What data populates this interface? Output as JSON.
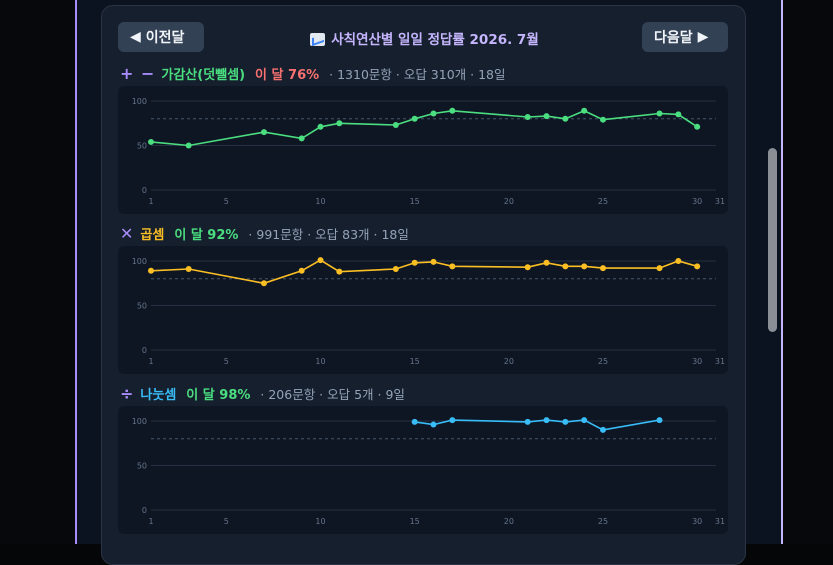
{
  "header": {
    "prev_label": "이전달",
    "next_label": "다음달",
    "title": "사칙연산별 일일 정답률 2026. 7월"
  },
  "sections": [
    {
      "icon": "+ −",
      "name": "가감산(덧뺄셈)",
      "rate": "이 달 76%",
      "meta": "· 1310문항 · 오답 310개 · 18일",
      "name_color": "#4ade80",
      "rate_color": "#f87171",
      "line_color": "#4ade80"
    },
    {
      "icon": "✕",
      "name": "곱셈",
      "rate": "이 달 92%",
      "meta": "· 991문항 · 오답 83개 · 18일",
      "name_color": "#fbbf24",
      "rate_color": "#4ade80",
      "line_color": "#fbbf24"
    },
    {
      "icon": "÷",
      "name": "나눗셈",
      "rate": "이 달 98%",
      "meta": "· 206문항 · 오답 5개 · 9일",
      "name_color": "#38bdf8",
      "rate_color": "#4ade80",
      "line_color": "#38bdf8"
    }
  ],
  "chart_data": [
    {
      "type": "line",
      "ylim": [
        0,
        100
      ],
      "xlim": [
        1,
        31
      ],
      "ytick_labels": [
        "100",
        "50",
        "0"
      ],
      "xtick_labels": [
        "1",
        "5",
        "10",
        "15",
        "20",
        "25",
        "30",
        "31"
      ],
      "reference_line": 80,
      "grid": true,
      "x": [
        1,
        3,
        7,
        9,
        10,
        11,
        14,
        15,
        16,
        17,
        21,
        22,
        23,
        24,
        25,
        28,
        29,
        30
      ],
      "y": [
        54,
        50,
        65,
        58,
        71,
        75,
        73,
        80,
        86,
        89,
        82,
        83,
        80,
        89,
        79,
        86,
        85,
        71
      ]
    },
    {
      "type": "line",
      "ylim": [
        0,
        100
      ],
      "xlim": [
        1,
        31
      ],
      "ytick_labels": [
        "100",
        "50",
        "0"
      ],
      "xtick_labels": [
        "1",
        "5",
        "10",
        "15",
        "20",
        "25",
        "30",
        "31"
      ],
      "reference_line": 80,
      "grid": true,
      "x": [
        1,
        3,
        7,
        9,
        10,
        11,
        14,
        15,
        16,
        17,
        21,
        22,
        23,
        24,
        25,
        28,
        29,
        30
      ],
      "y": [
        89,
        91,
        75,
        89,
        101,
        88,
        91,
        98,
        99,
        94,
        93,
        98,
        94,
        94,
        92,
        92,
        100,
        94
      ]
    },
    {
      "type": "line",
      "ylim": [
        0,
        100
      ],
      "xlim": [
        1,
        31
      ],
      "ytick_labels": [
        "100",
        "50",
        "0"
      ],
      "xtick_labels": [
        "1",
        "5",
        "10",
        "15",
        "20",
        "25",
        "30",
        "31"
      ],
      "reference_line": 80,
      "grid": true,
      "x": [
        15,
        16,
        17,
        21,
        22,
        23,
        24,
        25,
        28
      ],
      "y": [
        99,
        96,
        101,
        99,
        101,
        99,
        101,
        90,
        101
      ]
    }
  ]
}
